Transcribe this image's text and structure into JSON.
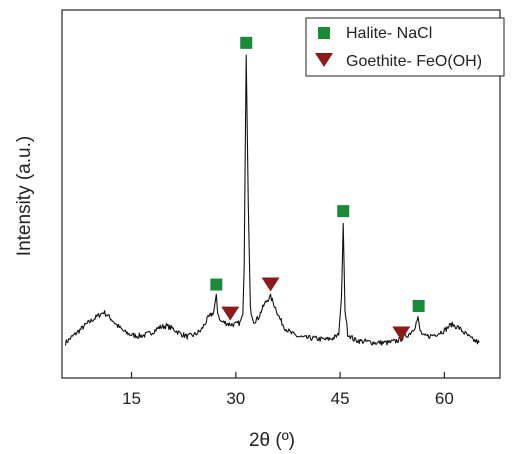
{
  "chart_data": {
    "type": "line",
    "xlabel": "2θ (º)",
    "ylabel": "Intensity (a.u.)",
    "xlim": [
      5,
      68
    ],
    "ylim": [
      0,
      100
    ],
    "xticks": [
      "15",
      "30",
      "45",
      "60"
    ],
    "grid": false,
    "legend_position": "top-right",
    "series": [
      {
        "color": "#111111",
        "x": [
          5.5,
          7,
          8.5,
          10,
          11,
          12,
          13,
          14,
          15,
          16,
          17,
          18,
          19,
          20,
          21,
          22,
          23,
          24,
          25,
          26,
          26.8,
          27.2,
          27.4,
          27.8,
          28.5,
          29.2,
          30,
          30.6,
          31,
          31.2,
          31.5,
          31.8,
          32.1,
          32.6,
          33.2,
          34,
          34.5,
          35,
          35.6,
          36.3,
          37,
          38,
          39,
          40,
          41,
          42,
          43,
          44,
          44.8,
          45.2,
          45.45,
          45.7,
          46.1,
          47,
          48,
          49,
          50,
          51,
          52,
          53,
          54,
          55,
          55.7,
          56.2,
          56.5,
          57,
          58,
          59,
          60,
          61,
          62,
          63,
          64,
          65
        ],
        "y": [
          5,
          8,
          11,
          13.5,
          15,
          13,
          10.5,
          8.5,
          7.5,
          7.2,
          7.5,
          8.5,
          10,
          10.5,
          9.5,
          8,
          7,
          7.5,
          9,
          13,
          15,
          20,
          15,
          12,
          11.5,
          11,
          11,
          11.5,
          14,
          30,
          99,
          50,
          16,
          12,
          13,
          17,
          19,
          20,
          17,
          13,
          10,
          8,
          7,
          6.5,
          6.5,
          6.2,
          6,
          6.5,
          7.5,
          20,
          44,
          16,
          8,
          6,
          5.5,
          5.3,
          5,
          5,
          5,
          5.5,
          6.5,
          8,
          10,
          13,
          9,
          7,
          7.2,
          8,
          9,
          11,
          10,
          8,
          6,
          5
        ]
      }
    ],
    "markers": [
      {
        "name": "Halite- NaCl",
        "shape": "square",
        "color": "#1a8a38",
        "x": [
          27.2,
          31.5,
          45.45,
          56.3
        ],
        "y": [
          24,
          103,
          48,
          17
        ]
      },
      {
        "name": "Goethite- FeO(OH)",
        "shape": "triangle-down",
        "color": "#8b1a1a",
        "x": [
          29.2,
          35,
          53.8
        ],
        "y": [
          14.5,
          24,
          8
        ]
      }
    ]
  }
}
